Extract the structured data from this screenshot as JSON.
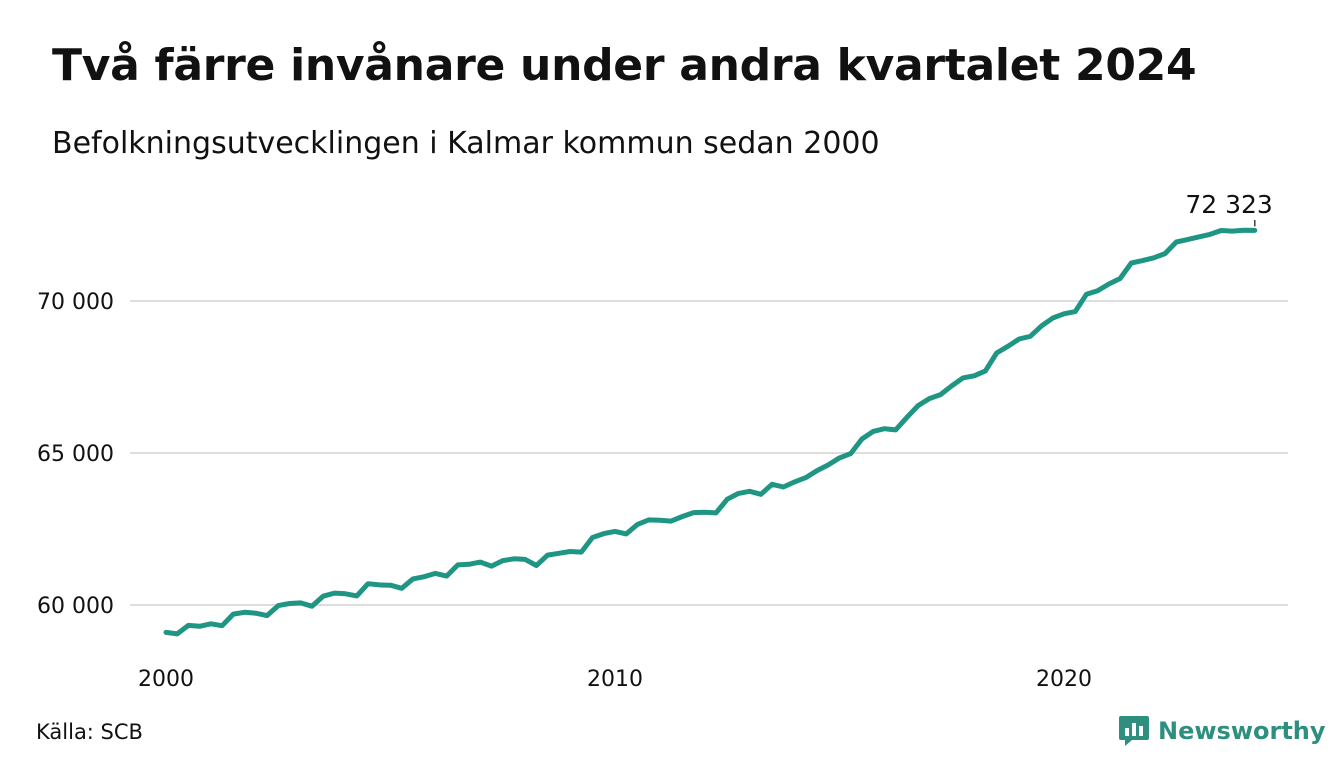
{
  "header": {
    "title": "Två färre invånare under andra kvartalet 2024",
    "subtitle": "Befolkningsutvecklingen i Kalmar kommun sedan 2000"
  },
  "footer": {
    "source": "Källa: SCB",
    "brand": "Newsworthy",
    "brand_icon": "newsworthy-logo-icon"
  },
  "colors": {
    "line": "#1f9584",
    "grid": "#dddddd",
    "brand": "#2f8f7f"
  },
  "chart_data": {
    "type": "line",
    "title": "Två färre invånare under andra kvartalet 2024",
    "subtitle": "Befolkningsutvecklingen i Kalmar kommun sedan 2000",
    "xlabel": "",
    "ylabel": "",
    "x_ticks": [
      2000,
      2010,
      2020
    ],
    "y_ticks": [
      {
        "value": 60000,
        "label": "60 000"
      },
      {
        "value": 65000,
        "label": "65 000"
      },
      {
        "value": 70000,
        "label": "70 000"
      }
    ],
    "xlim": [
      2000,
      2025.0
    ],
    "ylim": [
      58500,
      73000
    ],
    "grid": true,
    "end_label": "72 323",
    "series": [
      {
        "values": [
          [
            2000.0,
            59100
          ],
          [
            2000.25,
            59050
          ],
          [
            2000.5,
            59330
          ],
          [
            2000.75,
            59300
          ],
          [
            2001.0,
            59380
          ],
          [
            2001.25,
            59320
          ],
          [
            2001.5,
            59700
          ],
          [
            2001.75,
            59760
          ],
          [
            2002.0,
            59730
          ],
          [
            2002.25,
            59650
          ],
          [
            2002.5,
            59980
          ],
          [
            2002.75,
            60050
          ],
          [
            2003.0,
            60070
          ],
          [
            2003.25,
            59960
          ],
          [
            2003.5,
            60290
          ],
          [
            2003.75,
            60390
          ],
          [
            2004.0,
            60370
          ],
          [
            2004.25,
            60300
          ],
          [
            2004.5,
            60700
          ],
          [
            2004.75,
            60660
          ],
          [
            2005.0,
            60650
          ],
          [
            2005.25,
            60550
          ],
          [
            2005.5,
            60860
          ],
          [
            2005.75,
            60930
          ],
          [
            2006.0,
            61040
          ],
          [
            2006.25,
            60950
          ],
          [
            2006.5,
            61320
          ],
          [
            2006.75,
            61340
          ],
          [
            2007.0,
            61410
          ],
          [
            2007.25,
            61280
          ],
          [
            2007.5,
            61460
          ],
          [
            2007.75,
            61520
          ],
          [
            2008.0,
            61500
          ],
          [
            2008.25,
            61300
          ],
          [
            2008.5,
            61640
          ],
          [
            2008.75,
            61700
          ],
          [
            2009.0,
            61760
          ],
          [
            2009.25,
            61740
          ],
          [
            2009.5,
            62220
          ],
          [
            2009.75,
            62350
          ],
          [
            2010.0,
            62420
          ],
          [
            2010.25,
            62340
          ],
          [
            2010.5,
            62650
          ],
          [
            2010.75,
            62800
          ],
          [
            2011.0,
            62790
          ],
          [
            2011.25,
            62760
          ],
          [
            2011.5,
            62910
          ],
          [
            2011.75,
            63040
          ],
          [
            2012.0,
            63050
          ],
          [
            2012.25,
            63030
          ],
          [
            2012.5,
            63480
          ],
          [
            2012.75,
            63670
          ],
          [
            2013.0,
            63740
          ],
          [
            2013.25,
            63640
          ],
          [
            2013.5,
            63970
          ],
          [
            2013.75,
            63880
          ],
          [
            2014.0,
            64050
          ],
          [
            2014.25,
            64190
          ],
          [
            2014.5,
            64420
          ],
          [
            2014.75,
            64610
          ],
          [
            2015.0,
            64840
          ],
          [
            2015.25,
            64980
          ],
          [
            2015.5,
            65460
          ],
          [
            2015.75,
            65710
          ],
          [
            2016.0,
            65800
          ],
          [
            2016.25,
            65760
          ],
          [
            2016.5,
            66170
          ],
          [
            2016.75,
            66560
          ],
          [
            2017.0,
            66790
          ],
          [
            2017.25,
            66920
          ],
          [
            2017.5,
            67210
          ],
          [
            2017.75,
            67470
          ],
          [
            2018.0,
            67540
          ],
          [
            2018.25,
            67700
          ],
          [
            2018.5,
            68290
          ],
          [
            2018.75,
            68510
          ],
          [
            2019.0,
            68750
          ],
          [
            2019.25,
            68840
          ],
          [
            2019.5,
            69180
          ],
          [
            2019.75,
            69440
          ],
          [
            2020.0,
            69580
          ],
          [
            2020.25,
            69650
          ],
          [
            2020.5,
            70220
          ],
          [
            2020.75,
            70340
          ],
          [
            2021.0,
            70560
          ],
          [
            2021.25,
            70740
          ],
          [
            2021.5,
            71250
          ],
          [
            2021.75,
            71330
          ],
          [
            2022.0,
            71420
          ],
          [
            2022.25,
            71560
          ],
          [
            2022.5,
            71940
          ],
          [
            2022.75,
            72020
          ],
          [
            2023.0,
            72110
          ],
          [
            2023.25,
            72190
          ],
          [
            2023.5,
            72320
          ],
          [
            2023.75,
            72300
          ],
          [
            2024.0,
            72325
          ],
          [
            2024.25,
            72323
          ]
        ]
      }
    ]
  }
}
